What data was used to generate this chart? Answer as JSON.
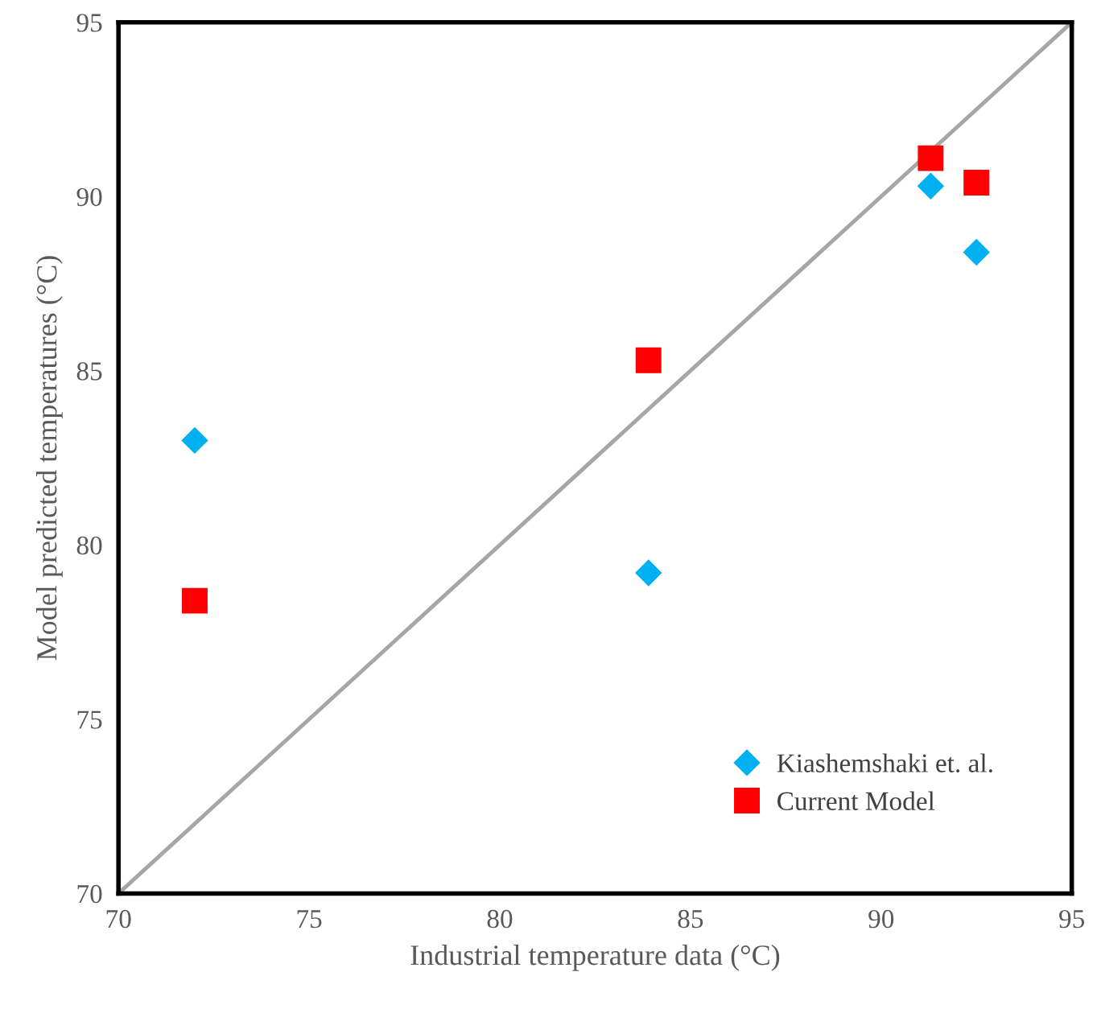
{
  "chart_data": {
    "type": "scatter",
    "xlabel": "Industrial temperature data (°C)",
    "ylabel": "Model predicted temperatures (°C)",
    "xlim": [
      70,
      95
    ],
    "ylim": [
      70,
      95
    ],
    "xticks": [
      70,
      75,
      80,
      85,
      90,
      95
    ],
    "yticks": [
      70,
      75,
      80,
      85,
      90,
      95
    ],
    "grid": false,
    "legend": "bottom right",
    "series": [
      {
        "type": "line",
        "color": "#a6a6a6",
        "x": [
          70,
          95
        ],
        "values": [
          70,
          95
        ],
        "marker": "none",
        "line_style": "solid"
      },
      {
        "name": "Kiashemshaki et. al.",
        "color": "#00b0f0",
        "marker": "diamond",
        "x": [
          72.0,
          83.9,
          91.3,
          92.5
        ],
        "values": [
          83.0,
          79.2,
          90.3,
          88.4
        ]
      },
      {
        "name": "Current Model",
        "color": "#ff0000",
        "marker": "square",
        "x": [
          72.0,
          83.9,
          91.3,
          92.5
        ],
        "values": [
          78.4,
          85.3,
          91.1,
          90.4
        ]
      }
    ]
  }
}
